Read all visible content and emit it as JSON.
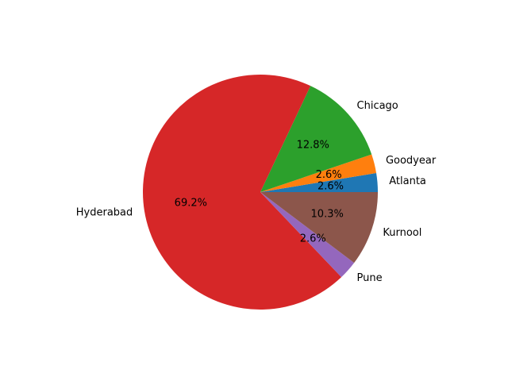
{
  "chart_data": {
    "type": "pie",
    "labels": [
      "Atlanta",
      "Goodyear",
      "Chicago",
      "Hyderabad",
      "Pune",
      "Kurnool"
    ],
    "values": [
      2.6,
      2.6,
      12.8,
      69.2,
      2.6,
      10.3
    ],
    "percent_labels": [
      "2.6%",
      "2.6%",
      "12.8%",
      "69.2%",
      "2.6%",
      "10.3%"
    ],
    "colors": [
      "#1f77b4",
      "#ff7f0e",
      "#2ca02c",
      "#d62728",
      "#9467bd",
      "#8c564b"
    ],
    "start_angle_deg": 0,
    "direction": "counterclockwise",
    "legend": "none"
  }
}
